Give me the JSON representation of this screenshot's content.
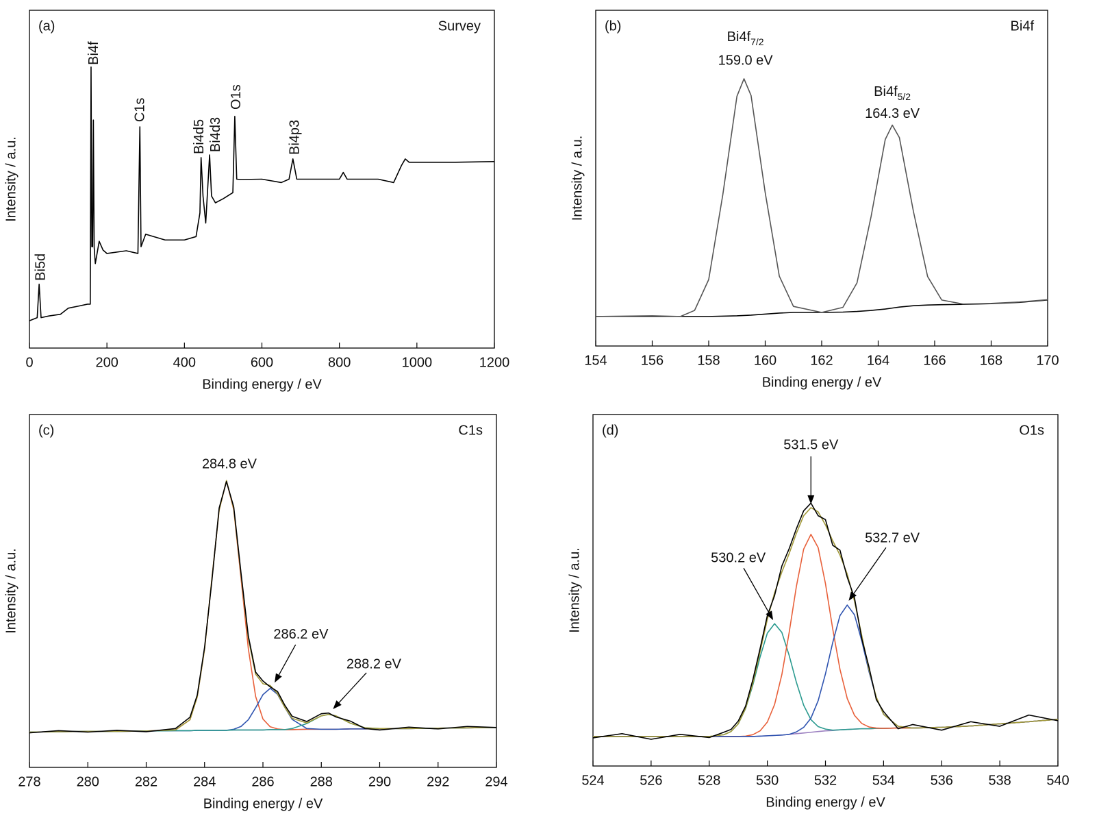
{
  "chart_data": [
    {
      "type": "line",
      "panel_label": "(a)",
      "title": "Survey",
      "xlabel": "Binding energy / eV",
      "ylabel": "Intensity / a.u.",
      "xlim": [
        0,
        1200
      ],
      "xticks": [
        0,
        200,
        400,
        600,
        800,
        1000,
        1200
      ],
      "ylim": [
        0,
        100
      ],
      "label_orientation": "vertical",
      "x": [
        0,
        20,
        25,
        30,
        50,
        80,
        100,
        130,
        150,
        157,
        159,
        161,
        163,
        165,
        167,
        170,
        180,
        190,
        200,
        250,
        280,
        285,
        288,
        300,
        350,
        400,
        430,
        440,
        443,
        448,
        455,
        465,
        470,
        480,
        500,
        525,
        530,
        535,
        545,
        600,
        650,
        670,
        680,
        690,
        750,
        800,
        810,
        820,
        900,
        940,
        960,
        970,
        980,
        1000,
        1100,
        1200
      ],
      "series": [
        {
          "color": "#000000",
          "values": [
            8.1,
            9,
            18.9,
            9,
            9.5,
            10,
            11.8,
            12.5,
            13,
            13,
            83.2,
            30,
            30,
            67.5,
            30,
            25,
            31.6,
            29,
            28,
            28.8,
            28,
            65.5,
            30,
            33.7,
            32,
            32,
            33,
            40,
            56.4,
            45,
            37,
            57.2,
            45,
            43,
            44.2,
            46,
            68.6,
            50,
            49.9,
            50,
            49,
            50,
            56,
            50,
            50,
            50,
            52,
            50,
            50,
            49,
            54,
            56,
            55,
            55,
            55,
            55.2
          ]
        }
      ],
      "annotations": [
        {
          "text": "Bi5d",
          "x": 30,
          "y": 19.9
        },
        {
          "text": "Bi4f",
          "x": 167,
          "y": 83.8
        },
        {
          "text": "C1s",
          "x": 287,
          "y": 66.9
        },
        {
          "text": "Bi4d5",
          "x": 440,
          "y": 57.4
        },
        {
          "text": "Bi4d3",
          "x": 482,
          "y": 58
        },
        {
          "text": "O1s",
          "x": 535,
          "y": 70.6
        },
        {
          "text": "Bi4p3",
          "x": 686,
          "y": 57.2
        }
      ]
    },
    {
      "type": "line",
      "panel_label": "(b)",
      "title": "Bi4f",
      "xlabel": "Binding energy / eV",
      "ylabel": "Intensity / a.u.",
      "xlim": [
        154,
        170
      ],
      "xticks": [
        154,
        156,
        158,
        160,
        162,
        164,
        166,
        168,
        170
      ],
      "ylim": [
        0,
        100
      ],
      "x": [
        154,
        155,
        156,
        157,
        157.5,
        158,
        158.5,
        159,
        159.25,
        159.5,
        160,
        160.5,
        161,
        162,
        162.75,
        163.25,
        163.75,
        164.25,
        164.5,
        164.75,
        165.25,
        165.75,
        166.25,
        167,
        168,
        169,
        170
      ],
      "series": [
        {
          "color": "#000000",
          "values": [
            8.8,
            8.8,
            8.8,
            8.8,
            8.8,
            8.8,
            8.9,
            9,
            9.1,
            9.2,
            9.5,
            9.8,
            10,
            10,
            10.1,
            10.3,
            10.6,
            11,
            11.3,
            11.6,
            12,
            12.2,
            12.3,
            12.4,
            12.6,
            13,
            13.7
          ]
        },
        {
          "color": "#555555",
          "values": [
            8.8,
            8.9,
            9.0,
            8.8,
            10.6,
            19.8,
            45.1,
            74.4,
            79.6,
            74.6,
            45.7,
            20.8,
            11.8,
            10,
            11.5,
            18.8,
            38.6,
            61.5,
            65.8,
            62.1,
            40,
            20.7,
            13.7,
            12.5,
            12.7,
            13.1,
            13.8
          ]
        }
      ],
      "annotations": [
        {
          "text": "Bi4f",
          "sub": "7/2",
          "x": 159.3,
          "y": 91.8
        },
        {
          "text": "159.0 eV",
          "x": 159.3,
          "y": 84.9
        },
        {
          "text": "Bi4f",
          "sub": "5/2",
          "x": 164.5,
          "y": 75.5
        },
        {
          "text": "164.3 eV",
          "x": 164.5,
          "y": 69
        }
      ]
    },
    {
      "type": "line",
      "panel_label": "(c)",
      "title": "C1s",
      "xlabel": "Binding energy / eV",
      "ylabel": "Intensity / a.u.",
      "xlim": [
        278,
        294
      ],
      "xticks": [
        278,
        280,
        282,
        284,
        286,
        288,
        290,
        292,
        294
      ],
      "ylim": [
        0,
        100
      ],
      "x": [
        278,
        279,
        280,
        281,
        282,
        283,
        283.5,
        283.75,
        284,
        284.25,
        284.5,
        284.75,
        285,
        285.25,
        285.5,
        285.75,
        286,
        286.25,
        286.5,
        286.75,
        287,
        287.5,
        288,
        288.25,
        288.5,
        289,
        289.5,
        290,
        291,
        292,
        293,
        294
      ],
      "series": [
        {
          "color": "#9b7fc0",
          "values": [
            10.0,
            10.1,
            10.2,
            10.2,
            10.3,
            10.4,
            10.4,
            10.5,
            10.5,
            10.5,
            10.5,
            10.5,
            10.6,
            10.6,
            10.6,
            10.6,
            10.6,
            10.7,
            10.7,
            10.7,
            10.7,
            10.8,
            10.8,
            10.8,
            10.8,
            10.9,
            10.9,
            11.0,
            11.0,
            11.1,
            11.2,
            11.3
          ]
        },
        {
          "color": "#e8603a",
          "values": [
            10.0,
            10.1,
            10.2,
            10.2,
            10.3,
            10.6,
            13.5,
            20.0,
            33.5,
            53.4,
            72.9,
            81.2,
            73.0,
            53.5,
            33.6,
            20.1,
            13.7,
            11.5,
            10.9,
            10.7,
            10.7,
            10.8,
            10.8,
            10.8,
            10.8,
            10.9,
            10.9,
            11.0,
            11.0,
            11.1,
            11.2,
            11.3
          ]
        },
        {
          "color": "#2f54b0",
          "values": [
            10.0,
            10.1,
            10.2,
            10.2,
            10.3,
            10.4,
            10.4,
            10.5,
            10.5,
            10.5,
            10.5,
            10.5,
            10.8,
            11.6,
            13.5,
            16.9,
            20.6,
            22.4,
            20.7,
            17.0,
            13.6,
            11.0,
            10.8,
            10.8,
            10.8,
            10.9,
            10.9,
            11.0,
            11.0,
            11.1,
            11.2,
            11.3
          ]
        },
        {
          "color": "#2a9a8f",
          "values": [
            10.0,
            10.1,
            10.2,
            10.2,
            10.3,
            10.4,
            10.4,
            10.5,
            10.5,
            10.5,
            10.5,
            10.5,
            10.6,
            10.6,
            10.6,
            10.6,
            10.6,
            10.7,
            10.7,
            10.7,
            11.0,
            12.4,
            14.6,
            15.0,
            14.6,
            12.5,
            11.2,
            11.0,
            11.0,
            11.1,
            11.2,
            11.3
          ]
        },
        {
          "color": "#a39a3a",
          "values": [
            10.0,
            10.1,
            10.2,
            10.2,
            10.3,
            10.6,
            13.5,
            20.0,
            33.5,
            53.4,
            72.9,
            81.3,
            73.3,
            54.5,
            36.5,
            26.4,
            23.7,
            23.2,
            20.9,
            17.0,
            13.9,
            12.6,
            14.6,
            15.0,
            14.6,
            12.5,
            11.2,
            11.0,
            11.0,
            11.1,
            11.2,
            11.3
          ]
        },
        {
          "color": "#000000",
          "values": [
            9.8,
            10.4,
            10.0,
            10.5,
            10.1,
            11.0,
            14.2,
            20.5,
            34.0,
            52.8,
            73.5,
            81.0,
            73.8,
            55.0,
            37.2,
            27.0,
            24.5,
            22.8,
            21.5,
            17.6,
            14.5,
            13.0,
            15.2,
            15.4,
            14.3,
            13.1,
            11.0,
            10.6,
            11.4,
            10.9,
            11.6,
            11.3
          ]
        }
      ],
      "annotations": [
        {
          "text": "284.8 eV",
          "x": 284.85,
          "y": 85.8
        },
        {
          "text": "286.2 eV",
          "x": 287.3,
          "y": 37.5,
          "target": [
            286.4,
            24
          ]
        },
        {
          "text": "288.2 eV",
          "x": 289.8,
          "y": 29.1,
          "target": [
            288.4,
            16.5
          ]
        }
      ]
    },
    {
      "type": "line",
      "panel_label": "(d)",
      "title": "O1s",
      "xlabel": "Binding energy / eV",
      "ylabel": "Intensity / a.u.",
      "xlim": [
        524,
        540
      ],
      "xticks": [
        524,
        526,
        528,
        530,
        532,
        534,
        536,
        538,
        540
      ],
      "ylim": [
        0,
        100
      ],
      "x": [
        524,
        525,
        526,
        527,
        528,
        528.5,
        528.75,
        529,
        529.25,
        529.5,
        529.75,
        530,
        530.25,
        530.5,
        530.75,
        531,
        531.25,
        531.5,
        531.75,
        532,
        532.25,
        532.5,
        532.75,
        533,
        533.25,
        533.5,
        533.75,
        534,
        534.5,
        535,
        536,
        537,
        538,
        539,
        540
      ],
      "series": [
        {
          "color": "#9b7fc0",
          "values": [
            8.4,
            8.4,
            8.4,
            8.4,
            8.4,
            8.4,
            8.4,
            8.4,
            8.4,
            8.4,
            8.5,
            8.6,
            8.7,
            8.8,
            9.0,
            9.2,
            9.4,
            9.6,
            9.8,
            10.0,
            10.1,
            10.3,
            10.4,
            10.5,
            10.6,
            10.6,
            10.7,
            10.7,
            10.8,
            10.8,
            11.0,
            11.4,
            12.0,
            12.6,
            13.3
          ]
        },
        {
          "color": "#2a9a8f",
          "values": [
            8.4,
            8.4,
            8.4,
            8.4,
            8.4,
            8.9,
            9.8,
            12.0,
            16.3,
            23.0,
            31.0,
            37.8,
            40.5,
            38.0,
            31.5,
            23.8,
            17.3,
            13.2,
            11.2,
            10.5,
            10.2,
            10.3,
            10.4,
            10.5,
            10.6,
            10.6,
            10.7,
            10.7,
            10.8,
            10.8,
            11.0,
            11.4,
            12.0,
            12.6,
            13.3
          ]
        },
        {
          "color": "#e8603a",
          "values": [
            8.4,
            8.4,
            8.4,
            8.4,
            8.4,
            8.4,
            8.4,
            8.4,
            8.5,
            8.9,
            10.0,
            12.5,
            17.5,
            26.0,
            37.9,
            51.1,
            61.7,
            65.9,
            62.1,
            51.9,
            39.0,
            27.5,
            19.2,
            14.4,
            12.1,
            11.1,
            10.8,
            10.7,
            10.8,
            10.8,
            11.0,
            11.4,
            12.0,
            12.6,
            13.3
          ]
        },
        {
          "color": "#2f54b0",
          "values": [
            8.4,
            8.4,
            8.4,
            8.4,
            8.4,
            8.4,
            8.4,
            8.4,
            8.4,
            8.4,
            8.5,
            8.6,
            8.7,
            8.8,
            9.0,
            9.7,
            11.0,
            13.6,
            18.6,
            26.2,
            35.1,
            42.8,
            45.8,
            43.0,
            35.6,
            26.8,
            19.5,
            14.7,
            11.3,
            10.8,
            11.0,
            11.4,
            12.0,
            12.6,
            13.3
          ]
        },
        {
          "color": "#a39a3a",
          "values": [
            8.4,
            8.4,
            8.4,
            8.4,
            8.4,
            8.9,
            9.8,
            12.0,
            16.4,
            23.5,
            32.5,
            41.7,
            49.3,
            55.2,
            60.4,
            66.2,
            71.2,
            73.5,
            72.3,
            68.6,
            64.1,
            60.0,
            54.6,
            46.9,
            37.1,
            27.3,
            19.6,
            14.7,
            11.3,
            10.8,
            11.0,
            11.4,
            12.0,
            12.6,
            13.3
          ]
        },
        {
          "color": "#000000",
          "values": [
            8.0,
            9.2,
            7.6,
            9.0,
            8.1,
            9.6,
            10.4,
            12.8,
            17.0,
            24.5,
            33.4,
            42.8,
            48.5,
            56.9,
            61.8,
            67.5,
            72.6,
            74.8,
            71.2,
            70.1,
            62.8,
            61.4,
            53.7,
            47.8,
            36.2,
            28.1,
            18.9,
            15.5,
            10.6,
            11.8,
            10.2,
            12.6,
            11.3,
            14.5,
            12.9
          ]
        }
      ],
      "annotations": [
        {
          "text": "531.5 eV",
          "x": 531.5,
          "y": 91.2,
          "target": [
            531.5,
            74.5
          ]
        },
        {
          "text": "530.2 eV",
          "x": 529.0,
          "y": 59,
          "target": [
            530.2,
            41.5
          ]
        },
        {
          "text": "532.7 eV",
          "x": 534.3,
          "y": 64.7,
          "target": [
            532.8,
            47
          ]
        }
      ]
    }
  ]
}
